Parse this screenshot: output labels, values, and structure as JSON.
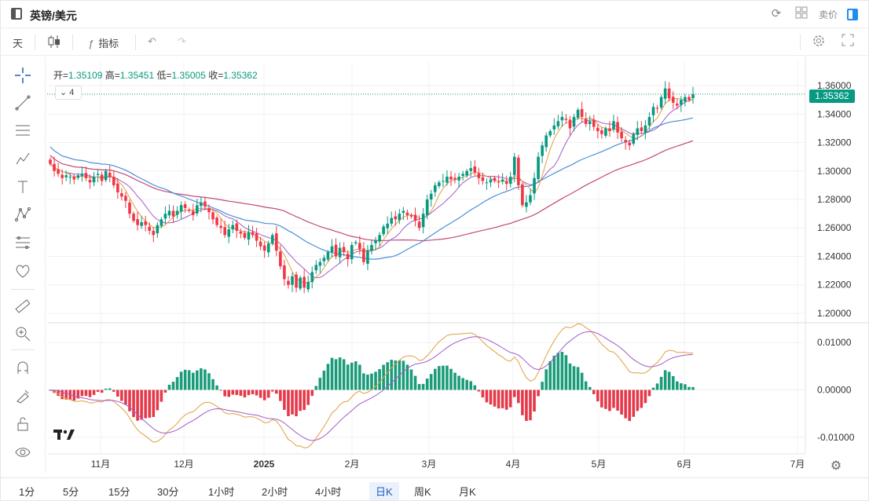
{
  "window": {
    "title": "英镑/美元",
    "sell_label": "卖价"
  },
  "toolbar": {
    "interval": "天",
    "indicators_label": "指标"
  },
  "ohlc": {
    "open_label": "开=",
    "open": "1.35109",
    "high_label": "高=",
    "high": "1.35451",
    "low_label": "低=",
    "low": "1.35005",
    "close_label": "收=",
    "close": "1.35362"
  },
  "legend_chip": "4",
  "last_price": "1.35362",
  "bottom_bar": {
    "items": [
      "1分",
      "5分",
      "15分",
      "30分",
      "1小时",
      "2小时",
      "4小时",
      "日K",
      "周K",
      "月K"
    ],
    "active_index": 7
  },
  "chart_data": {
    "type": "candlestick",
    "x_labels": [
      "11月",
      "12月",
      "2025",
      "2月",
      "3月",
      "4月",
      "5月",
      "6月",
      "7月"
    ],
    "price_axis": {
      "ticks": [
        "1.36000",
        "1.34000",
        "1.32000",
        "1.30000",
        "1.28000",
        "1.26000",
        "1.24000",
        "1.22000",
        "1.20000"
      ],
      "range": [
        1.195,
        1.365
      ]
    },
    "macd_axis": {
      "ticks": [
        "0.01000",
        "0.00000",
        "-0.01000"
      ],
      "range": [
        -0.013,
        0.013
      ]
    },
    "closes": [
      1.305,
      1.3,
      1.298,
      1.295,
      1.297,
      1.296,
      1.294,
      1.297,
      1.298,
      1.295,
      1.292,
      1.296,
      1.298,
      1.293,
      1.3,
      1.296,
      1.29,
      1.285,
      1.282,
      1.279,
      1.27,
      1.265,
      1.262,
      1.264,
      1.262,
      1.258,
      1.255,
      1.262,
      1.266,
      1.27,
      1.272,
      1.268,
      1.272,
      1.276,
      1.274,
      1.272,
      1.269,
      1.276,
      1.278,
      1.275,
      1.271,
      1.266,
      1.262,
      1.26,
      1.255,
      1.259,
      1.262,
      1.258,
      1.256,
      1.253,
      1.257,
      1.255,
      1.251,
      1.247,
      1.244,
      1.249,
      1.255,
      1.244,
      1.233,
      1.224,
      1.22,
      1.226,
      1.218,
      1.225,
      1.218,
      1.222,
      1.229,
      1.234,
      1.236,
      1.239,
      1.243,
      1.247,
      1.24,
      1.246,
      1.243,
      1.238,
      1.248,
      1.25,
      1.245,
      1.236,
      1.244,
      1.248,
      1.251,
      1.255,
      1.261,
      1.263,
      1.267,
      1.266,
      1.27,
      1.272,
      1.269,
      1.268,
      1.265,
      1.26,
      1.27,
      1.28,
      1.284,
      1.29,
      1.292,
      1.293,
      1.296,
      1.294,
      1.294,
      1.296,
      1.298,
      1.3,
      1.302,
      1.299,
      1.295,
      1.293,
      1.292,
      1.294,
      1.293,
      1.292,
      1.294,
      1.291,
      1.296,
      1.31,
      1.29,
      1.276,
      1.278,
      1.283,
      1.295,
      1.31,
      1.318,
      1.325,
      1.328,
      1.332,
      1.335,
      1.338,
      1.336,
      1.33,
      1.338,
      1.343,
      1.338,
      1.333,
      1.335,
      1.331,
      1.328,
      1.326,
      1.33,
      1.328,
      1.335,
      1.327,
      1.323,
      1.32,
      1.318,
      1.326,
      1.33,
      1.328,
      1.332,
      1.338,
      1.345,
      1.344,
      1.352,
      1.358,
      1.351,
      1.348,
      1.346,
      1.35,
      1.352,
      1.35,
      1.354
    ]
  }
}
